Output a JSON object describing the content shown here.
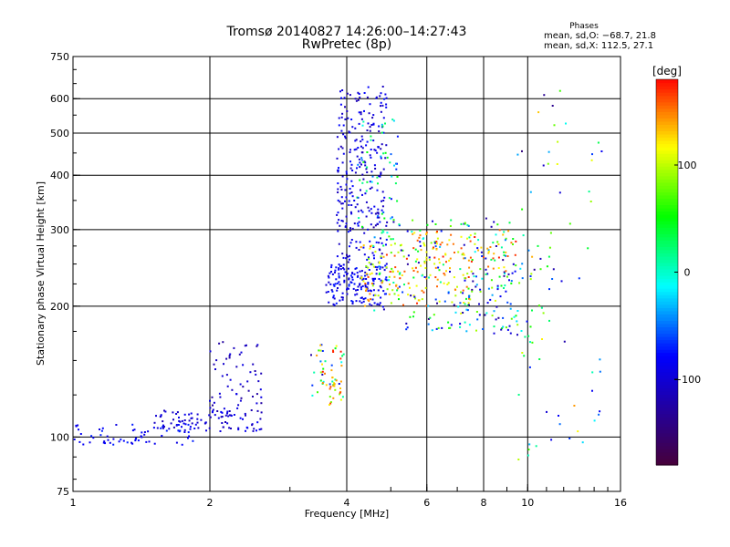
{
  "chart_data": {
    "type": "scatter",
    "title": "Tromsø 20140827 14:26:00–14:27:43",
    "subtitle": "RwPretec (8p)",
    "xlabel": "Frequency [MHz]",
    "ylabel": "Stationary phase Virtual Height [km]",
    "x_scale": "log",
    "y_scale": "log",
    "xlim": [
      1,
      16
    ],
    "ylim": [
      75,
      750
    ],
    "x_ticks": [
      1,
      2,
      4,
      6,
      8,
      10,
      16
    ],
    "x_tick_labels": [
      "1",
      "2",
      "4",
      "6",
      "8",
      "10",
      "16"
    ],
    "y_ticks": [
      75,
      100,
      200,
      300,
      400,
      500,
      600,
      750
    ],
    "y_tick_labels": [
      "75",
      "100",
      "200",
      "300",
      "400",
      "500",
      "600",
      "750"
    ],
    "grid": true,
    "legend": {
      "title": "Phases",
      "lines": [
        "mean, sd,O: −68.7, 21.8",
        "mean, sd,X: 112.5, 27.1"
      ],
      "placement": "top-right"
    },
    "colorbar": {
      "label": "[deg]",
      "min": -180,
      "max": 180,
      "ticks": [
        100,
        0,
        -100
      ],
      "tick_labels": [
        "100",
        "0",
        "−100"
      ]
    },
    "clusters": [
      {
        "f": [
          1.0,
          1.9
        ],
        "h": [
          96,
          107
        ],
        "phase": [
          -95,
          -70
        ],
        "n": 70
      },
      {
        "f": [
          1.5,
          2.6
        ],
        "h": [
          103,
          115
        ],
        "phase": [
          -120,
          -80
        ],
        "n": 90
      },
      {
        "f": [
          2.0,
          2.6
        ],
        "h": [
          114,
          168
        ],
        "phase": [
          -130,
          -90
        ],
        "n": 60
      },
      {
        "f": [
          3.3,
          3.95
        ],
        "h": [
          118,
          165
        ],
        "phase": [
          -140,
          170
        ],
        "n": 45
      },
      {
        "f": [
          3.5,
          3.9
        ],
        "h": [
          125,
          160
        ],
        "phase": [
          120,
          175
        ],
        "n": 18
      },
      {
        "f": [
          3.6,
          4.9
        ],
        "h": [
          200,
          250
        ],
        "phase": [
          -110,
          -70
        ],
        "n": 160
      },
      {
        "f": [
          3.8,
          4.9
        ],
        "h": [
          250,
          640
        ],
        "phase": [
          -120,
          -75
        ],
        "n": 260
      },
      {
        "f": [
          4.2,
          5.2
        ],
        "h": [
          280,
          560
        ],
        "phase": [
          -80,
          60
        ],
        "n": 60
      },
      {
        "f": [
          4.3,
          7.5
        ],
        "h": [
          200,
          280
        ],
        "phase": [
          80,
          170
        ],
        "n": 140
      },
      {
        "f": [
          4.5,
          9.5
        ],
        "h": [
          175,
          320
        ],
        "phase": [
          -140,
          80
        ],
        "n": 180
      },
      {
        "f": [
          5.5,
          9.5
        ],
        "h": [
          240,
          300
        ],
        "phase": [
          100,
          175
        ],
        "n": 70
      },
      {
        "f": [
          7.0,
          11.5
        ],
        "h": [
          170,
          300
        ],
        "phase": [
          -130,
          110
        ],
        "n": 80
      },
      {
        "f": [
          9.5,
          13.0
        ],
        "h": [
          85,
          640
        ],
        "phase": [
          -150,
          160
        ],
        "n": 50
      },
      {
        "f": [
          13.2,
          15.0
        ],
        "h": [
          85,
          620
        ],
        "phase": [
          -120,
          120
        ],
        "n": 15
      }
    ]
  }
}
